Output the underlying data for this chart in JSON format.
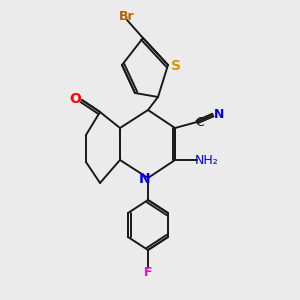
{
  "background_color": "#ebebeb",
  "bond_color": "#1a1a1a",
  "atom_colors": {
    "Br": "#b86000",
    "S": "#c8a000",
    "O": "#ff0000",
    "N": "#0000ff",
    "F": "#ff00cc",
    "CN_C": "#1a1a1a",
    "CN_N": "#0000ff"
  },
  "figsize": [
    3.0,
    3.0
  ],
  "dpi": 100
}
